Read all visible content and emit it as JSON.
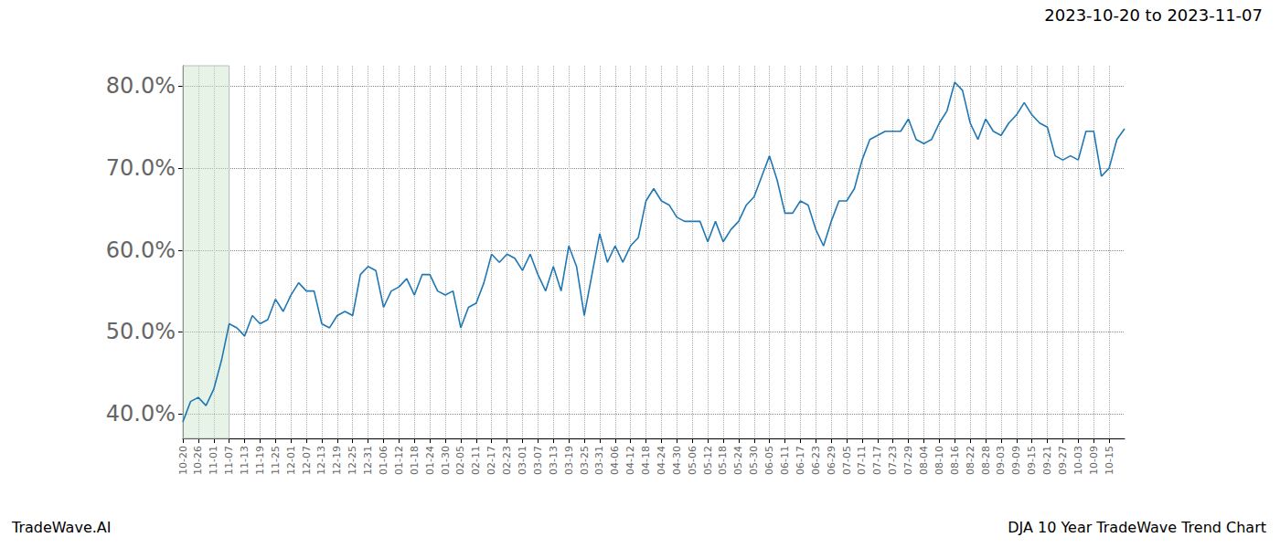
{
  "chart_data": {
    "type": "line",
    "title": "2023-10-20 to 2023-11-07",
    "annotations": [
      "TradeWave.AI",
      "DJA 10 Year TradeWave Trend Chart"
    ],
    "categories": [
      "10-20",
      null,
      "10-26",
      null,
      "11-01",
      null,
      "11-07",
      null,
      "11-13",
      null,
      "11-19",
      null,
      "11-25",
      null,
      "12-01",
      null,
      "12-07",
      null,
      "12-13",
      null,
      "12-19",
      null,
      "12-25",
      null,
      "12-31",
      null,
      "01-06",
      null,
      "01-12",
      null,
      "01-18",
      null,
      "01-24",
      null,
      "01-30",
      null,
      "02-05",
      null,
      "02-11",
      null,
      "02-17",
      null,
      "02-23",
      null,
      "03-01",
      null,
      "03-07",
      null,
      "03-13",
      null,
      "03-19",
      null,
      "03-25",
      null,
      "03-31",
      null,
      "04-06",
      null,
      "04-12",
      null,
      "04-18",
      null,
      "04-24",
      null,
      "04-30",
      null,
      "05-06",
      null,
      "05-12",
      null,
      "05-18",
      null,
      "05-24",
      null,
      "05-30",
      null,
      "06-05",
      null,
      "06-11",
      null,
      "06-17",
      null,
      "06-23",
      null,
      "06-29",
      null,
      "07-05",
      null,
      "07-11",
      null,
      "07-17",
      null,
      "07-23",
      null,
      "07-29",
      null,
      "08-04",
      null,
      "08-10",
      null,
      "08-16",
      null,
      "08-22",
      null,
      "08-28",
      null,
      "09-03",
      null,
      "09-09",
      null,
      "09-15",
      null,
      "09-21",
      null,
      "09-27",
      null,
      "10-03",
      null,
      "10-09",
      null,
      "10-15",
      null,
      null
    ],
    "values": [
      39,
      41.5,
      42,
      41,
      43,
      46.5,
      51,
      50.5,
      49.5,
      52,
      51,
      51.5,
      54,
      52.5,
      54.5,
      56,
      55,
      55,
      51,
      50.5,
      52,
      52.5,
      52,
      57,
      58,
      57.5,
      53,
      55,
      55.5,
      56.5,
      54.5,
      57,
      57,
      55,
      54.5,
      55,
      50.5,
      53,
      53.5,
      56,
      59.5,
      58.5,
      59.5,
      59,
      57.5,
      59.5,
      57,
      55,
      58,
      55,
      60.5,
      58,
      52,
      57,
      62,
      58.5,
      60.5,
      58.5,
      60.5,
      61.5,
      66,
      67.5,
      66,
      65.5,
      64,
      63.5,
      63.5,
      63.5,
      61,
      63.5,
      61,
      62.5,
      63.5,
      65.5,
      66.5,
      69,
      71.5,
      68.5,
      64.5,
      64.5,
      66,
      65.5,
      62.5,
      60.5,
      63.5,
      66,
      66,
      67.5,
      71,
      73.5,
      74,
      74.5,
      74.5,
      74.5,
      76,
      73.5,
      73,
      73.5,
      75.5,
      77,
      80.5,
      79.5,
      75.5,
      73.5,
      76,
      74.5,
      74,
      75.5,
      76.5,
      78,
      76.5,
      75.5,
      75,
      71.5,
      71,
      71.5,
      71,
      74.5,
      74.5,
      69,
      70,
      73.5,
      74.8
    ],
    "color": "#1f77b4",
    "highlight": {
      "from": "10-20",
      "to": "11-07"
    },
    "ylim": [
      37,
      82.5
    ],
    "yticks": [
      {
        "value": 40,
        "label": "40.0%"
      },
      {
        "value": 50,
        "label": "50.0%"
      },
      {
        "value": 60,
        "label": "60.0%"
      },
      {
        "value": 70,
        "label": "70.0%"
      },
      {
        "value": 80,
        "label": "80.0%"
      }
    ],
    "grid": true
  }
}
